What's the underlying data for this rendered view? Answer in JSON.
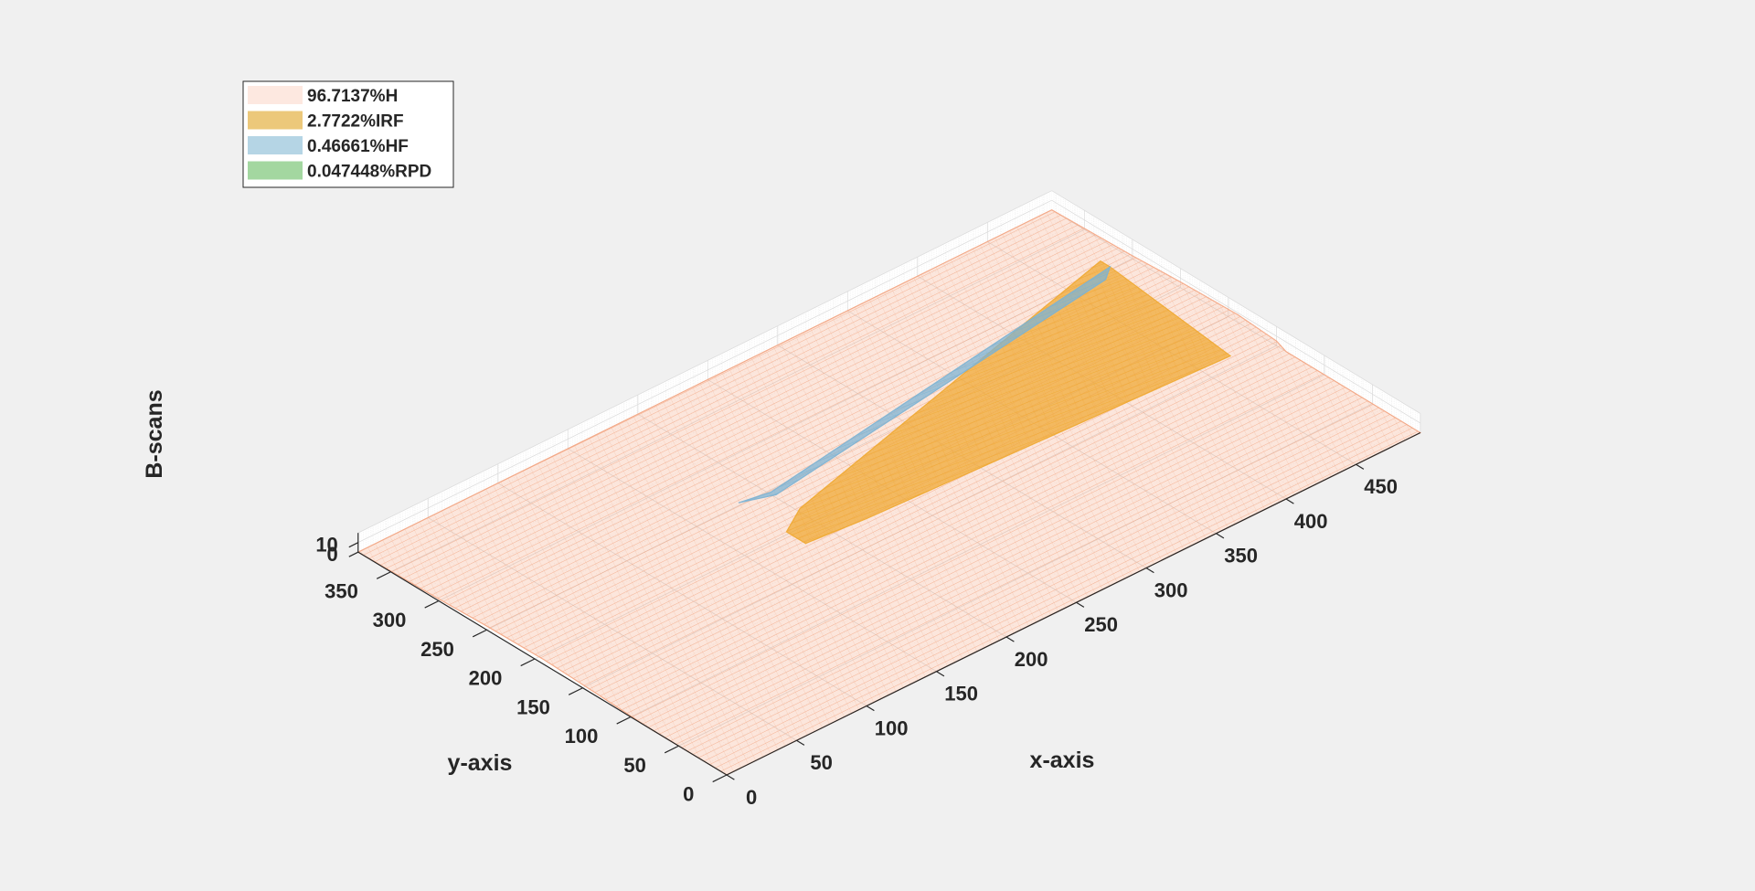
{
  "chart_data": {
    "type": "surface3d",
    "title": "",
    "xlabel": "x-axis",
    "ylabel": "y-axis",
    "zlabel": "B-scans",
    "xlim": [
      0,
      496
    ],
    "ylim": [
      0,
      384
    ],
    "zlim": [
      0,
      20
    ],
    "x_ticks": [
      0,
      50,
      100,
      150,
      200,
      250,
      300,
      350,
      400,
      450
    ],
    "y_ticks": [
      0,
      50,
      100,
      150,
      200,
      250,
      300,
      350
    ],
    "z_ticks": [
      0,
      10
    ],
    "grid": true,
    "legend_position": "top-left",
    "series": [
      {
        "name": "96.7137%H",
        "color": "#f4a582",
        "legend_color": "#fde8e0",
        "outline": [
          [
            0,
            0,
            0
          ],
          [
            496,
            0,
            0
          ],
          [
            496,
            140,
            0
          ],
          [
            496,
            150,
            5
          ],
          [
            496,
            190,
            8
          ],
          [
            496,
            250,
            6
          ],
          [
            496,
            300,
            3
          ],
          [
            496,
            384,
            0
          ],
          [
            0,
            384,
            0
          ],
          [
            0,
            300,
            2
          ],
          [
            0,
            250,
            4
          ],
          [
            0,
            190,
            5
          ],
          [
            0,
            140,
            3
          ],
          [
            0,
            80,
            0
          ]
        ]
      },
      {
        "name": "2.7722%IRF",
        "color": "#f0a830",
        "legend_color": "#ecc87a",
        "outline": [
          [
            180,
            180,
            3
          ],
          [
            220,
            175,
            3
          ],
          [
            470,
            160,
            2
          ],
          [
            480,
            300,
            3
          ],
          [
            480,
            310,
            3
          ],
          [
            200,
            215,
            4
          ],
          [
            180,
            200,
            3
          ]
        ]
      },
      {
        "name": "0.46661%HF",
        "color": "#7bb3d4",
        "legend_color": "#b5d5e5",
        "outline": [
          [
            180,
            250,
            3
          ],
          [
            200,
            245,
            3
          ],
          [
            480,
            300,
            3
          ],
          [
            470,
            290,
            3
          ],
          [
            200,
            240,
            3
          ]
        ]
      },
      {
        "name": "0.047448%RPD",
        "color": "#7fcc7f",
        "legend_color": "#a3d7a0",
        "outline": []
      }
    ]
  }
}
